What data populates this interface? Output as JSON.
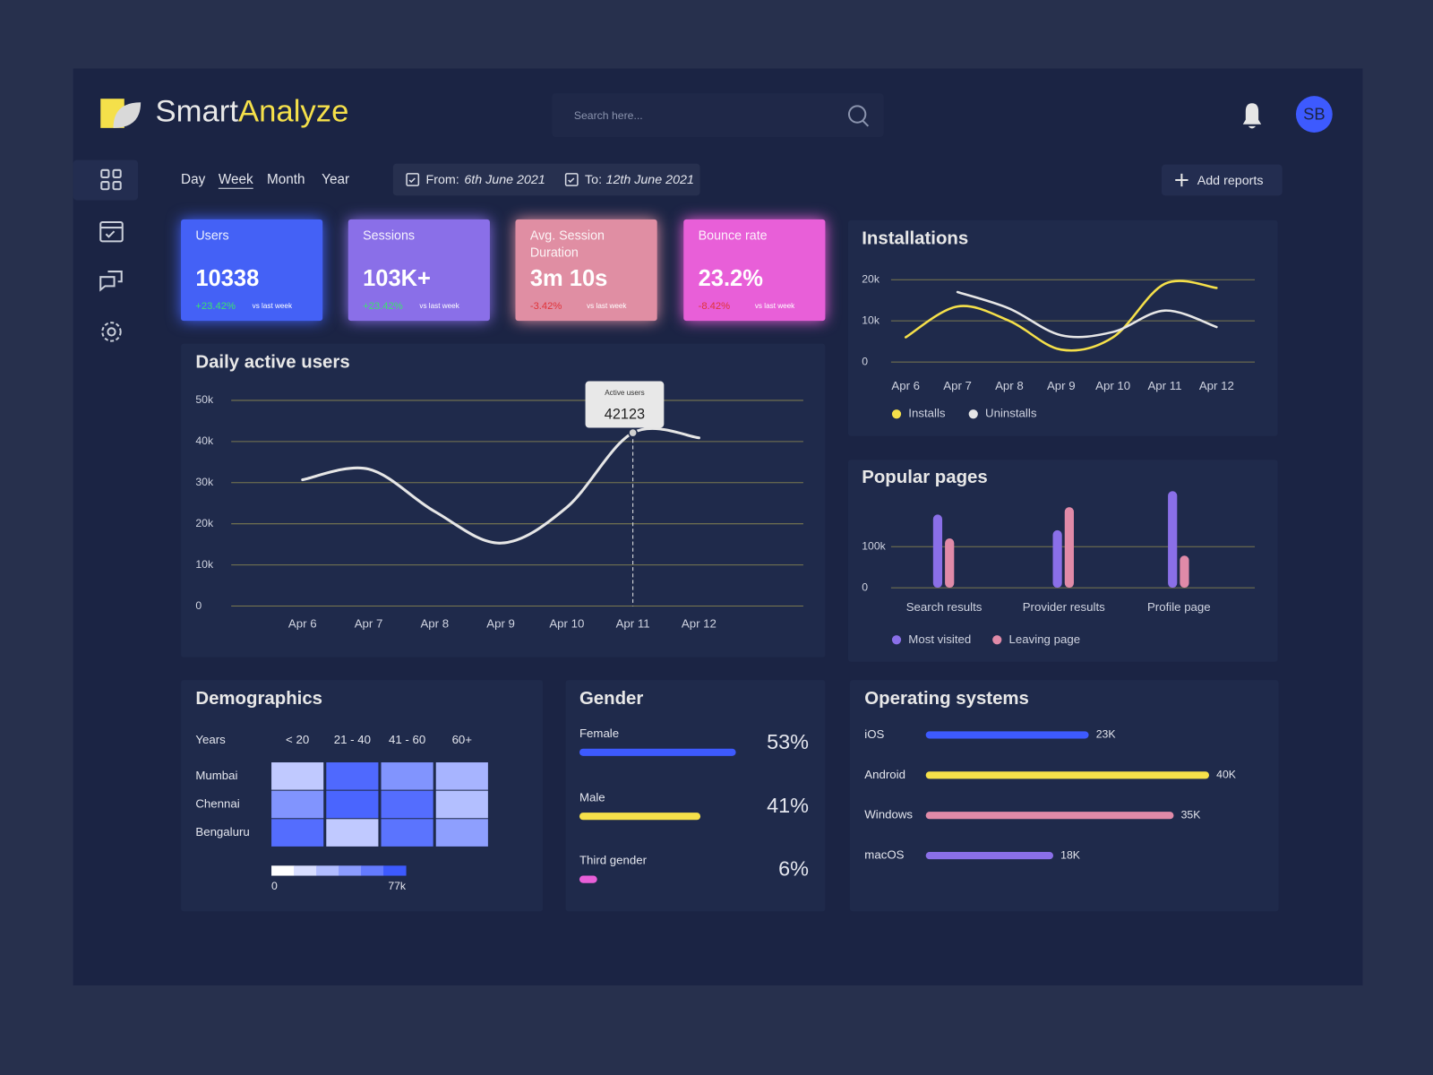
{
  "header": {
    "logo_first": "Smart",
    "logo_second": "Analyze",
    "search_placeholder": "Search here...",
    "avatar_initials": "SB"
  },
  "filters": {
    "periods": [
      "Day",
      "Week",
      "Month",
      "Year"
    ],
    "from_label": "From:",
    "from_date": "6th June 2021",
    "to_label": "To:",
    "to_date": "12th June 2021",
    "add_reports": "Add reports"
  },
  "kpis": [
    {
      "label": "Users",
      "value": "10338",
      "change": "+23.42%",
      "comparison": "vs last week",
      "color": "#4461f6",
      "change_color": "#3be36f"
    },
    {
      "label": "Sessions",
      "value": "103K+",
      "change": "+23.42%",
      "comparison": "vs last week",
      "color": "#8a6fe8",
      "change_color": "#3be36f"
    },
    {
      "label": "Avg. Session Duration",
      "value": "3m 10s",
      "change": "-3.42%",
      "comparison": "vs last week",
      "color": "#e08ea3",
      "change_color": "#e0343a"
    },
    {
      "label": "Bounce rate",
      "value": "23.2%",
      "change": "-8.42%",
      "comparison": "vs last week",
      "color": "#e85fd8",
      "change_color": "#e0343a"
    }
  ],
  "chart_data": [
    {
      "type": "line",
      "title": "Daily active users",
      "categories": [
        "Apr 6",
        "Apr 7",
        "Apr 8",
        "Apr 9",
        "Apr 10",
        "Apr 11",
        "Apr 12"
      ],
      "series": [
        {
          "name": "Active users",
          "color": "#e6e6e6",
          "values": [
            30700,
            33300,
            23000,
            15300,
            24000,
            42123,
            40900
          ]
        }
      ],
      "ylim": [
        0,
        50000
      ],
      "yticks": [
        0,
        {
          "value": 10000,
          "label": "10k"
        },
        {
          "value": 20000,
          "label": "20k"
        },
        {
          "value": 30000,
          "label": "30k"
        },
        {
          "value": 40000,
          "label": "40k"
        },
        {
          "value": 50000,
          "label": "50k"
        }
      ],
      "grid": true,
      "grid_color": "#7a7850"
    },
    {
      "type": "line",
      "title": "Installations",
      "categories": [
        "Apr 6",
        "Apr 7",
        "Apr 8",
        "Apr 9",
        "Apr 10",
        "Apr 11",
        "Apr 12"
      ],
      "series": [
        {
          "name": "Installs",
          "color": "#f5e04a",
          "values": [
            6000,
            13500,
            10000,
            3000,
            6000,
            19000,
            18000
          ]
        },
        {
          "name": "Uninstalls",
          "color": "#e6e6e6",
          "values": [
            null,
            17000,
            13000,
            6500,
            7300,
            12500,
            8500
          ]
        }
      ],
      "ylim": [
        0,
        20000
      ],
      "yticks": [
        0,
        {
          "value": 10000,
          "label": "10k"
        },
        {
          "value": 20000,
          "label": "20k"
        }
      ],
      "grid": true,
      "grid_color": "#7a7850",
      "legend": true
    },
    {
      "type": "bar",
      "title": "Popular pages",
      "categories": [
        "Search results",
        "Provider results",
        "Profile page"
      ],
      "series": [
        {
          "name": "Most visited",
          "color": "#8a6fe8",
          "values": [
            178000,
            140000,
            235000
          ]
        },
        {
          "name": "Leaving page",
          "color": "#e08aa8",
          "values": [
            120000,
            196000,
            78000
          ]
        }
      ],
      "ylim": [
        0,
        250000
      ],
      "yticks": [
        0,
        {
          "value": 100000,
          "label": "100k"
        }
      ],
      "grid": true,
      "grid_color": "#7a7850",
      "legend": true
    },
    {
      "type": "heatmap",
      "title": "Demographics",
      "x_label": "Years",
      "categories": [
        "< 20",
        "21 - 40",
        "41 - 60",
        "60+"
      ],
      "rows": [
        "Mumbai",
        "Chennai",
        "Bengaluru"
      ],
      "values": [
        [
          25000,
          70000,
          50000,
          35000
        ],
        [
          50000,
          72000,
          68000,
          30000
        ],
        [
          68000,
          25000,
          65000,
          45000
        ]
      ],
      "colorbar": {
        "lim": [
          0,
          77000
        ],
        "ticks": [
          0,
          {
            "value": 77000,
            "label": "77k"
          }
        ],
        "colors": [
          "#ffffff",
          "#3d5afe"
        ]
      }
    },
    {
      "type": "hbar",
      "title": "Gender",
      "categories": [
        "Female",
        "Male",
        "Third gender"
      ],
      "values": [
        53,
        41,
        6
      ],
      "value_labels": [
        "53%",
        "41%",
        "6%"
      ],
      "colors": [
        "#3d5afe",
        "#f5e04a",
        "#e85fd8"
      ],
      "xlim": [
        0,
        100
      ]
    },
    {
      "type": "hbar",
      "title": "Operating systems",
      "categories": [
        "iOS",
        "Android",
        "Windows",
        "macOS"
      ],
      "values": [
        23000,
        40000,
        35000,
        18000
      ],
      "value_labels": [
        "23K",
        "40K",
        "35K",
        "18K"
      ],
      "colors": [
        "#3d5afe",
        "#f5e04a",
        "#e08aa8",
        "#8a6fe8"
      ],
      "xlim": [
        0,
        40000
      ]
    }
  ]
}
